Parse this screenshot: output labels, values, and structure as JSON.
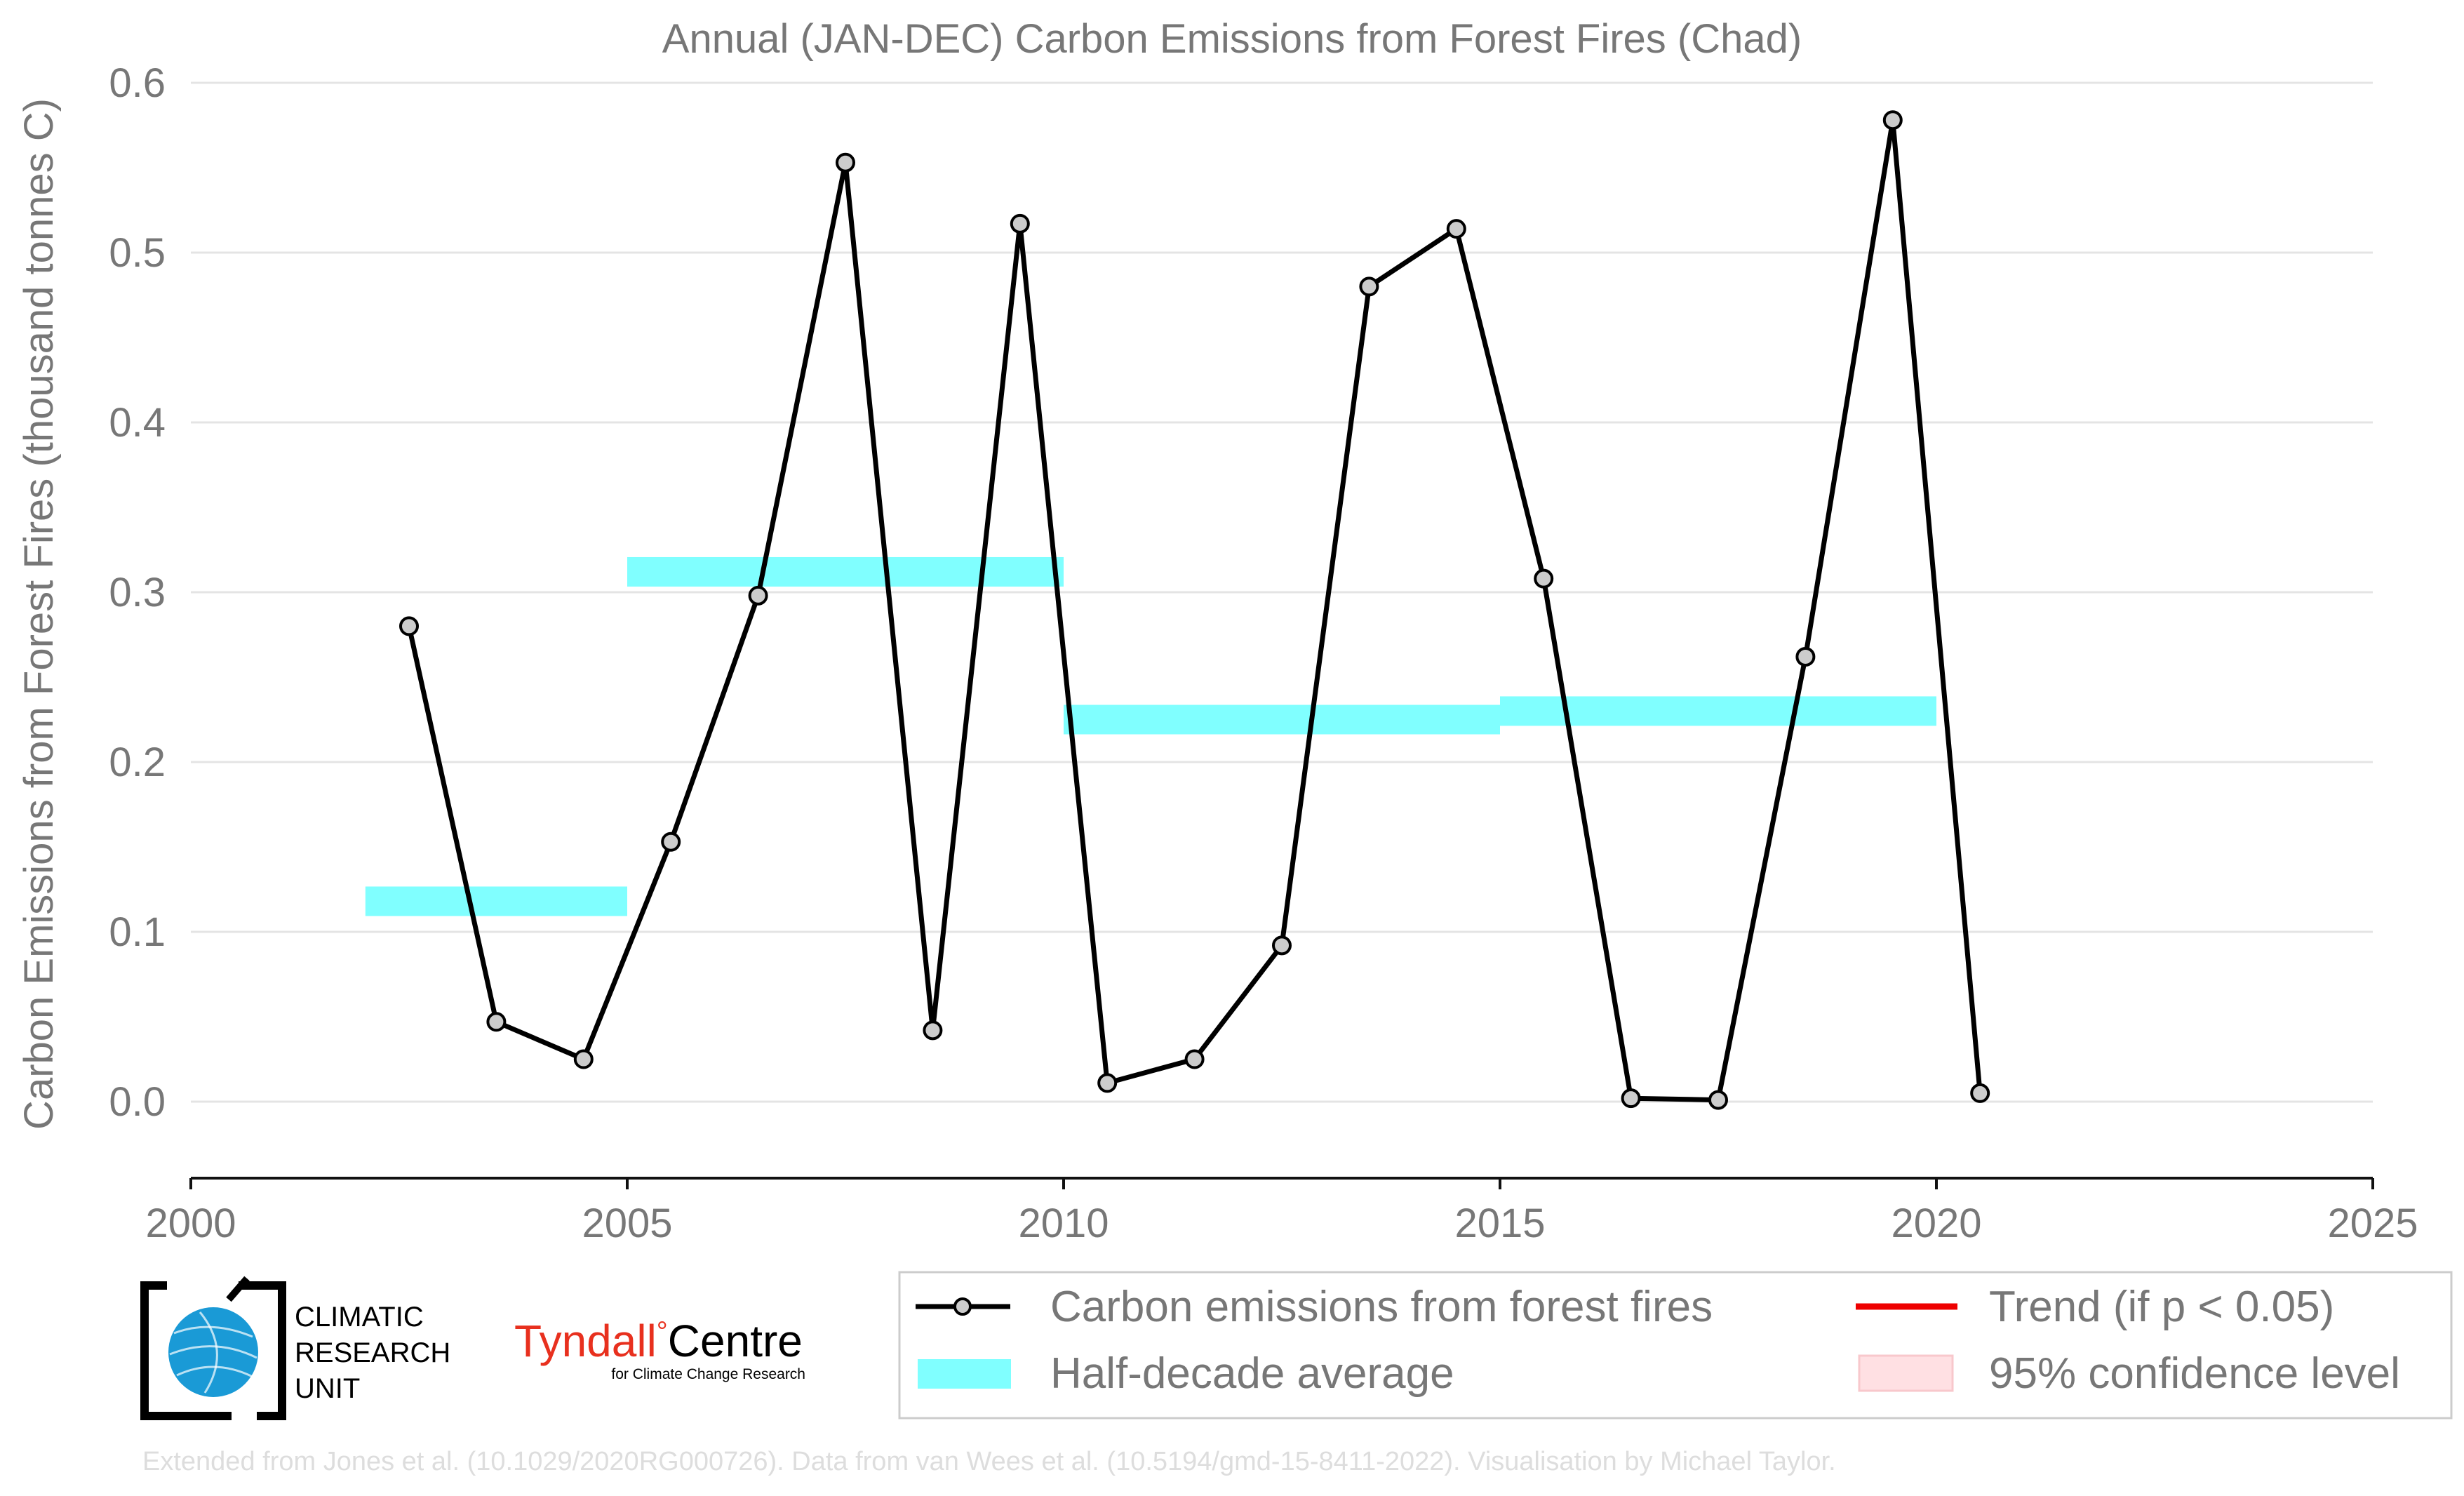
{
  "chart_data": {
    "type": "line",
    "title": "Annual (JAN-DEC) Carbon Emissions from Forest Fires (Chad)",
    "xlabel": "",
    "ylabel": "Carbon Emissions from Forest Fires (thousand tonnes C)",
    "xlim": [
      2000,
      2025
    ],
    "ylim": [
      -0.045,
      0.6
    ],
    "x_ticks": [
      "2000",
      "2005",
      "2010",
      "2015",
      "2020",
      "2025"
    ],
    "y_ticks": [
      "0.0",
      "0.1",
      "0.2",
      "0.3",
      "0.4",
      "0.5",
      "0.6"
    ],
    "grid": true,
    "series": [
      {
        "name": "Carbon emissions from forest fires",
        "color": "#000000",
        "marker_fill": "#cccccc",
        "x": [
          2002.5,
          2003.5,
          2004.5,
          2005.5,
          2006.5,
          2007.5,
          2008.5,
          2009.5,
          2010.5,
          2011.5,
          2012.5,
          2013.5,
          2014.5,
          2015.5,
          2016.5,
          2017.5,
          2018.5,
          2019.5,
          2020.5
        ],
        "y": [
          0.28,
          0.047,
          0.025,
          0.153,
          0.298,
          0.553,
          0.042,
          0.517,
          0.011,
          0.025,
          0.092,
          0.48,
          0.514,
          0.308,
          0.002,
          0.001,
          0.262,
          0.578,
          0.005
        ]
      }
    ],
    "half_decade_average": {
      "name": "Half-decade average",
      "color": "#80ffff",
      "segments": [
        {
          "x0": 2002,
          "x1": 2005,
          "y": 0.118
        },
        {
          "x0": 2005,
          "x1": 2010,
          "y": 0.312
        },
        {
          "x0": 2010,
          "x1": 2015,
          "y": 0.225
        },
        {
          "x0": 2015,
          "x1": 2020,
          "y": 0.23
        }
      ]
    },
    "legend": {
      "placement": "bottom-right",
      "entries": [
        {
          "label": "Carbon emissions from forest fires",
          "kind": "line-marker",
          "color": "#000000"
        },
        {
          "label": "Trend (if p < 0.05)",
          "kind": "line",
          "color": "#ee0000"
        },
        {
          "label": "Half-decade average",
          "kind": "band",
          "color": "#80ffff"
        },
        {
          "label": "95% confidence level",
          "kind": "patch",
          "color": "#ffe0e3"
        }
      ]
    }
  },
  "logos": {
    "cru_lines": [
      "CLIMATIC",
      "RESEARCH",
      "UNIT"
    ],
    "tyndall_name": "Tyndall",
    "tyndall_centre": "Centre",
    "tyndall_degree": "°",
    "tyndall_sub": "for Climate Change Research",
    "tyndall_color": "#e8301e",
    "globe_color": "#1a9ad6"
  },
  "footer": "Extended from Jones et al. (10.1029/2020RG000726). Data from van Wees et al. (10.5194/gmd-15-8411-2022). Visualisation by Michael Taylor."
}
